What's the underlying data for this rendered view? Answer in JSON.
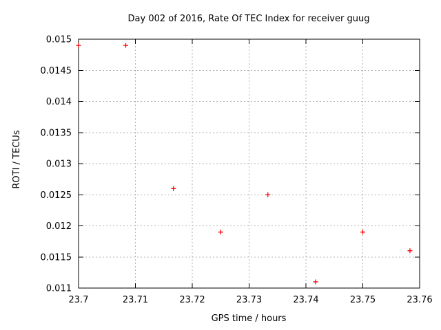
{
  "page": {
    "background": "#ffffff"
  },
  "chart_data": {
    "type": "scatter",
    "title": "Day 002 of 2016, Rate Of TEC Index for receiver guug",
    "xlabel": "GPS time / hours",
    "ylabel": "ROTI / TECUs",
    "xlim": [
      23.7,
      23.76
    ],
    "ylim": [
      0.011,
      0.015
    ],
    "grid": true,
    "legend": "none",
    "x_ticks": [
      {
        "value": 23.7,
        "label": "23.7"
      },
      {
        "value": 23.71,
        "label": "23.71"
      },
      {
        "value": 23.72,
        "label": "23.72"
      },
      {
        "value": 23.73,
        "label": "23.73"
      },
      {
        "value": 23.74,
        "label": "23.74"
      },
      {
        "value": 23.75,
        "label": "23.75"
      },
      {
        "value": 23.76,
        "label": "23.76"
      }
    ],
    "y_ticks": [
      {
        "value": 0.011,
        "label": "0.011"
      },
      {
        "value": 0.0115,
        "label": "0.0115"
      },
      {
        "value": 0.012,
        "label": "0.012"
      },
      {
        "value": 0.0125,
        "label": "0.0125"
      },
      {
        "value": 0.013,
        "label": "0.013"
      },
      {
        "value": 0.0135,
        "label": "0.0135"
      },
      {
        "value": 0.014,
        "label": "0.014"
      },
      {
        "value": 0.0145,
        "label": "0.0145"
      },
      {
        "value": 0.015,
        "label": "0.015"
      }
    ],
    "series": [
      {
        "name": "",
        "marker": "plus",
        "color": "#ff0000",
        "points": [
          [
            23.7,
            0.0149
          ],
          [
            23.7083,
            0.0149
          ],
          [
            23.7167,
            0.0126
          ],
          [
            23.725,
            0.0119
          ],
          [
            23.7333,
            0.0125
          ],
          [
            23.7417,
            0.0111
          ],
          [
            23.75,
            0.0119
          ],
          [
            23.7583,
            0.0116
          ]
        ]
      }
    ],
    "colors": {
      "frame": "#000000",
      "grid": "#b0b0b0",
      "text": "#000000",
      "marker": "#ff0000"
    }
  }
}
